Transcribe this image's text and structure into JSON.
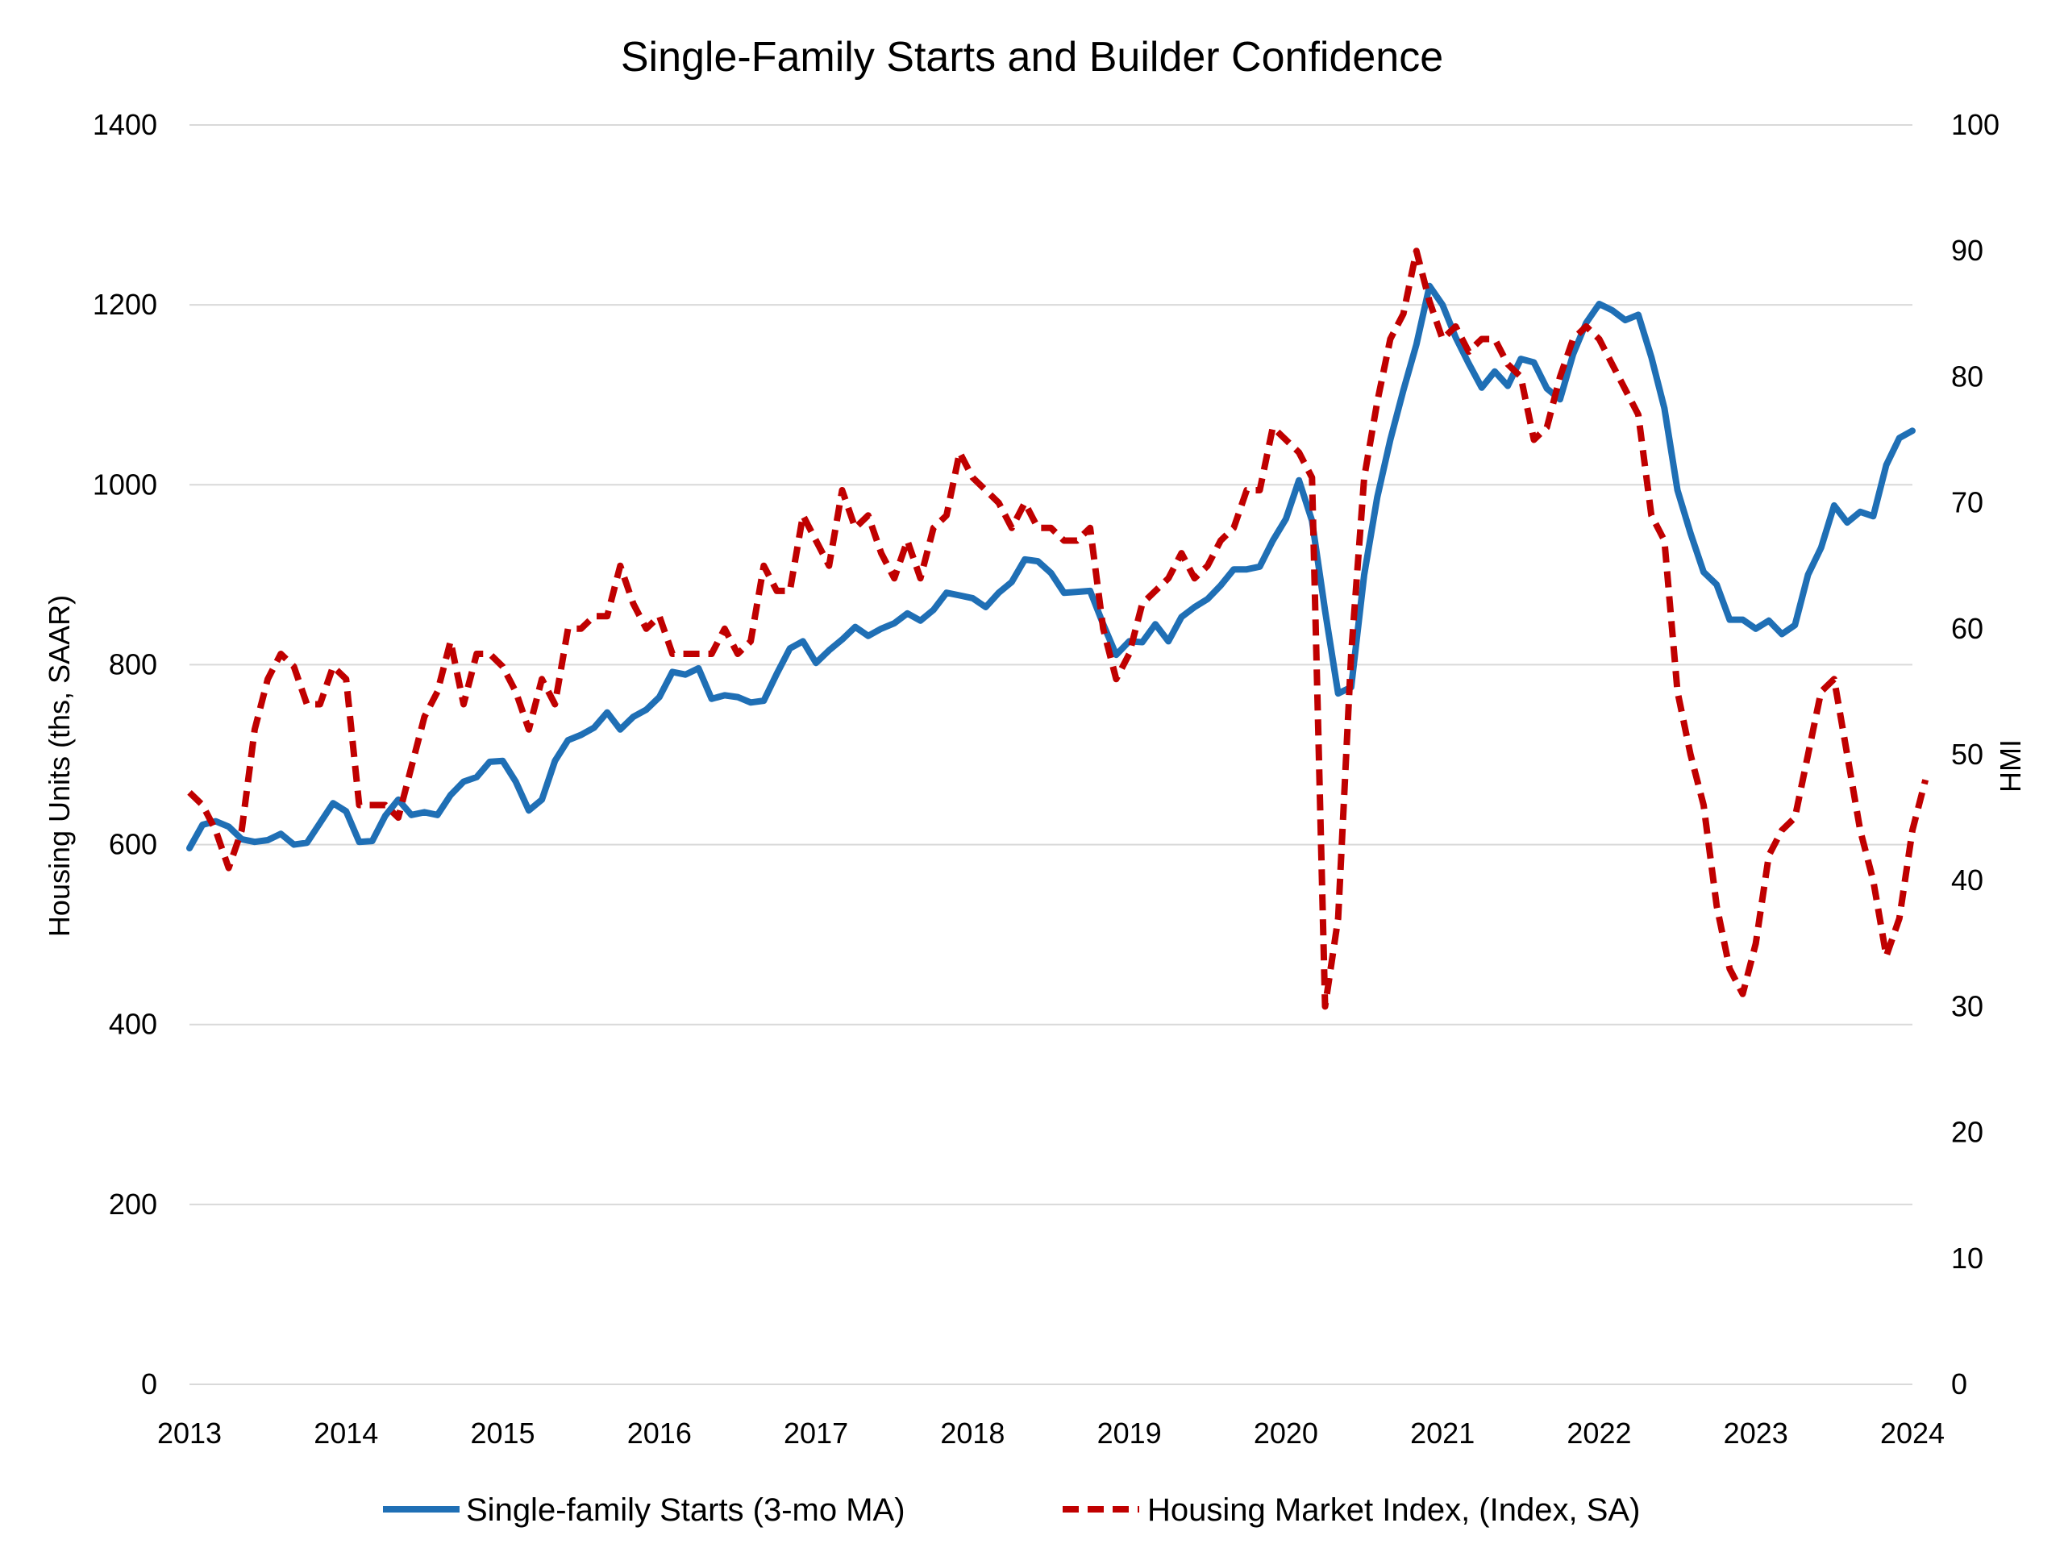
{
  "chart_data": {
    "type": "line",
    "title": "Single-Family Starts and Builder Confidence",
    "ylabel": "Housing Units (ths, SAAR)",
    "y2label": "HMI",
    "ylim": [
      0,
      1400
    ],
    "y2lim": [
      0,
      100
    ],
    "yticks": [
      "0",
      "200",
      "400",
      "600",
      "800",
      "1000",
      "1200",
      "1400"
    ],
    "y2ticks": [
      "0",
      "10",
      "20",
      "30",
      "40",
      "50",
      "60",
      "70",
      "80",
      "90",
      "100"
    ],
    "xticks": [
      "2013",
      "2014",
      "2015",
      "2016",
      "2017",
      "2018",
      "2019",
      "2020",
      "2021",
      "2022",
      "2023",
      "2024"
    ],
    "grid": true,
    "legend": "bottom",
    "colors": {
      "starts": "#1f6fb5",
      "hmi": "#c00000"
    },
    "series": [
      {
        "name": "Single-family Starts (3-mo MA)",
        "axis": "left",
        "style": "solid",
        "x_start": "2013-01",
        "values": [
          596,
          622,
          626,
          620,
          606,
          603,
          605,
          612,
          600,
          602,
          624,
          646,
          637,
          603,
          604,
          632,
          650,
          633,
          636,
          633,
          655,
          670,
          675,
          692,
          693,
          670,
          638,
          650,
          693,
          716,
          722,
          730,
          747,
          728,
          742,
          750,
          764,
          792,
          789,
          796,
          762,
          766,
          764,
          758,
          760,
          790,
          818,
          826,
          802,
          816,
          828,
          842,
          832,
          840,
          846,
          857,
          849,
          861,
          880,
          877,
          874,
          864,
          880,
          892,
          917,
          915,
          902,
          880,
          881,
          882,
          845,
          811,
          826,
          825,
          845,
          826,
          853,
          864,
          873,
          888,
          906,
          906,
          909,
          938,
          962,
          1005,
          960,
          860,
          768,
          775,
          900,
          986,
          1050,
          1105,
          1156,
          1221,
          1200,
          1164,
          1135,
          1108,
          1126,
          1110,
          1140,
          1136,
          1107,
          1095,
          1145,
          1180,
          1201,
          1194,
          1183,
          1189,
          1142,
          1085,
          994,
          946,
          903,
          889,
          850,
          850,
          840,
          849,
          834,
          844,
          900,
          930,
          977,
          958,
          970,
          965,
          1022,
          1052,
          1060
        ]
      },
      {
        "name": "Housing Market Index, (Index, SA)",
        "axis": "right",
        "style": "dashed",
        "x_start": "2013-01",
        "values": [
          47,
          46,
          44,
          41,
          44,
          52,
          56,
          58,
          57,
          54,
          54,
          57,
          56,
          46,
          46,
          46,
          45,
          49,
          53,
          55,
          59,
          54,
          58,
          58,
          57,
          55,
          52,
          56,
          54,
          60,
          60,
          61,
          61,
          65,
          62,
          60,
          61,
          58,
          58,
          58,
          58,
          60,
          58,
          59,
          65,
          63,
          63,
          69,
          67,
          65,
          71,
          68,
          69,
          66,
          64,
          67,
          64,
          68,
          69,
          74,
          72,
          71,
          70,
          68,
          70,
          68,
          68,
          67,
          67,
          68,
          60,
          56,
          58,
          62,
          63,
          64,
          66,
          64,
          65,
          67,
          68,
          71,
          71,
          76,
          75,
          74,
          72,
          30,
          37,
          58,
          72,
          78,
          83,
          85,
          90,
          86,
          83,
          84,
          82,
          83,
          83,
          81,
          80,
          75,
          76,
          80,
          83,
          84,
          83,
          81,
          79,
          77,
          69,
          67,
          55,
          50,
          46,
          38,
          33,
          31,
          35,
          42,
          44,
          45,
          50,
          55,
          56,
          50,
          44,
          40,
          34,
          37,
          44,
          48
        ]
      }
    ]
  }
}
